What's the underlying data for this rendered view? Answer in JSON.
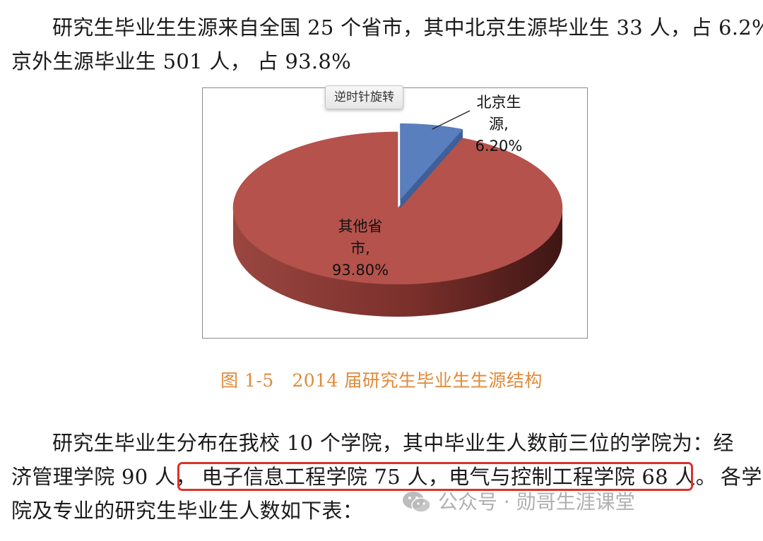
{
  "paragraph1": {
    "line1": "研究生毕业生生源来自全国 25 个省市，其中北京生源毕业生 33 人，占 6.2%；",
    "line2": "京外生源毕业生 501 人， 占 93.8%"
  },
  "figure": {
    "tooltip": "逆时针旋转",
    "caption": "图 1-5　2014 届研究生毕业生生源结构"
  },
  "chart_data": {
    "type": "pie",
    "style": "3d exploded",
    "slices": [
      {
        "label_lines": [
          "北京生",
          "源,",
          "6.20%"
        ],
        "value": 6.2,
        "color": "#5a7fbf"
      },
      {
        "label_lines": [
          "其他省",
          "市,",
          "93.80%"
        ],
        "value": 93.8,
        "color": "#b5524c"
      }
    ]
  },
  "paragraph2": {
    "line1": "研究生毕业生分布在我校 10 个学院，其中毕业生人数前三位的学院为：经",
    "line2a": "济管理学院 90 人，",
    "line2b": "电子信息工程学院 75 人，电气与控制工程学院 68 人。",
    "line2c": "各学",
    "line3": "院及专业的研究生毕业生人数如下表："
  },
  "watermark": {
    "text": "公众号 · 勋哥生涯课堂",
    "icon": "wechat-icon"
  }
}
